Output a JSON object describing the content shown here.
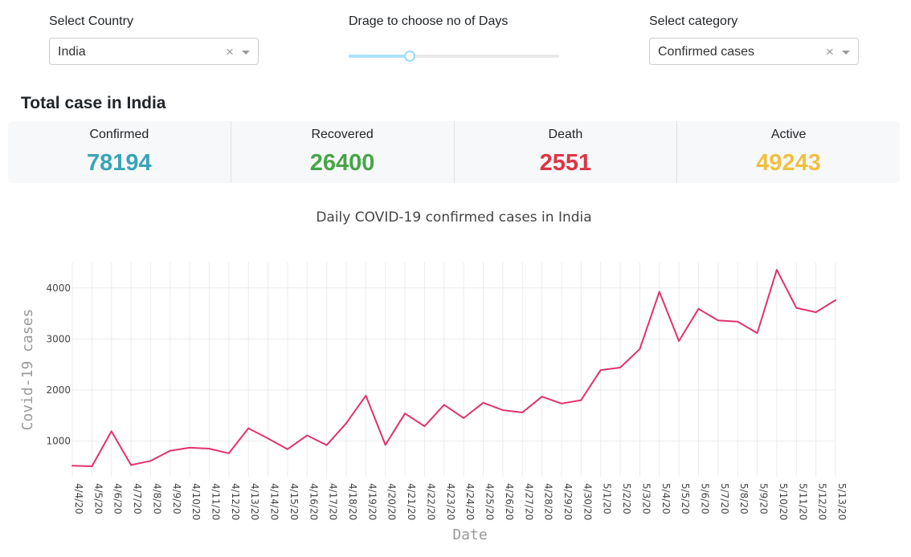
{
  "controls": {
    "country": {
      "label": "Select Country",
      "value": "India"
    },
    "days": {
      "label": "Drage to choose no of Days",
      "value_fraction": 0.29
    },
    "category": {
      "label": "Select category",
      "value": "Confirmed cases"
    },
    "clear_glyph": "×"
  },
  "summary": {
    "title": "Total case in India",
    "cards": [
      {
        "label": "Confirmed",
        "value": "78194",
        "color": "#3aa4b8"
      },
      {
        "label": "Recovered",
        "value": "26400",
        "color": "#47a547"
      },
      {
        "label": "Death",
        "value": "2551",
        "color": "#dc3545"
      },
      {
        "label": "Active",
        "value": "49243",
        "color": "#f0c040"
      }
    ]
  },
  "chart_data": {
    "type": "line",
    "title": "Daily COVID-19 confirmed cases  in India",
    "xlabel": "Date",
    "ylabel": "Covid-19 cases",
    "ylim": [
      300,
      4500
    ],
    "yticks": [
      1000,
      2000,
      3000,
      4000
    ],
    "grid": true,
    "line_color": "#e0336a",
    "x": [
      "4/4/20",
      "4/5/20",
      "4/6/20",
      "4/7/20",
      "4/8/20",
      "4/9/20",
      "4/10/20",
      "4/11/20",
      "4/12/20",
      "4/13/20",
      "4/14/20",
      "4/15/20",
      "4/16/20",
      "4/17/20",
      "4/18/20",
      "4/19/20",
      "4/20/20",
      "4/21/20",
      "4/22/20",
      "4/23/20",
      "4/24/20",
      "4/25/20",
      "4/26/20",
      "4/27/20",
      "4/28/20",
      "4/29/20",
      "4/30/20",
      "5/1/20",
      "5/2/20",
      "5/3/20",
      "5/4/20",
      "5/5/20",
      "5/6/20",
      "5/7/20",
      "5/8/20",
      "5/9/20",
      "5/10/20",
      "5/11/20",
      "5/12/20",
      "5/13/20"
    ],
    "y": [
      515,
      505,
      1190,
      530,
      610,
      810,
      870,
      850,
      760,
      1250,
      1050,
      840,
      1110,
      920,
      1350,
      1890,
      925,
      1540,
      1290,
      1710,
      1450,
      1750,
      1605,
      1560,
      1870,
      1735,
      1800,
      2390,
      2440,
      2805,
      3925,
      2960,
      3590,
      3365,
      3340,
      3115,
      4355,
      3610,
      3525,
      3760
    ]
  }
}
